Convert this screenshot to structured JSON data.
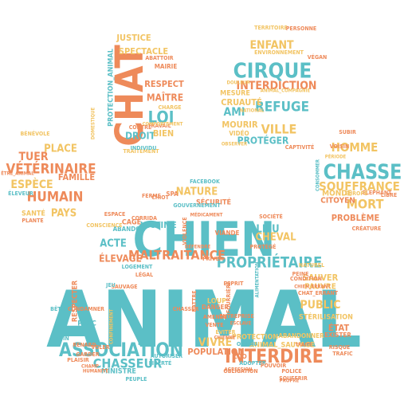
{
  "palette": {
    "teal": "#5bbfc6",
    "orange": "#ee8a5a",
    "yellow": "#f2c463"
  },
  "words": [
    {
      "text": "ANIMAL",
      "color": "teal"
    },
    {
      "text": "CHIEN",
      "color": "teal"
    },
    {
      "text": "CHAT",
      "color": "orange"
    },
    {
      "text": "CIRQUE",
      "color": "teal"
    },
    {
      "text": "CHASSE",
      "color": "teal"
    },
    {
      "text": "ASSOCIATION",
      "color": "teal"
    },
    {
      "text": "INTERDIRE",
      "color": "orange"
    },
    {
      "text": "PROPRIÉTAIRE",
      "color": "teal"
    },
    {
      "text": "VÉTÉRINAIRE",
      "color": "orange"
    },
    {
      "text": "SOUFFRANCE",
      "color": "yellow"
    },
    {
      "text": "MALTRAITANCE",
      "color": "orange"
    },
    {
      "text": "CHASSEUR",
      "color": "teal"
    },
    {
      "text": "REFUGE",
      "color": "teal"
    },
    {
      "text": "VILLE",
      "color": "yellow"
    },
    {
      "text": "LOI",
      "color": "teal"
    },
    {
      "text": "HUMAIN",
      "color": "orange"
    },
    {
      "text": "ESPÈCE",
      "color": "yellow"
    },
    {
      "text": "TUER",
      "color": "orange"
    },
    {
      "text": "MORT",
      "color": "yellow"
    },
    {
      "text": "HOMME",
      "color": "yellow"
    },
    {
      "text": "INTERDICTION",
      "color": "orange"
    },
    {
      "text": "ENFANT",
      "color": "yellow"
    },
    {
      "text": "NATURE",
      "color": "yellow"
    },
    {
      "text": "ÉLEVAGE",
      "color": "orange"
    },
    {
      "text": "VIVRE",
      "color": "yellow"
    },
    {
      "text": "PUBLIC",
      "color": "yellow"
    },
    {
      "text": "LIEU",
      "color": "teal"
    },
    {
      "text": "CHEVAL",
      "color": "yellow"
    },
    {
      "text": "VICTIME",
      "color": "teal"
    },
    {
      "text": "POPULATION",
      "color": "orange"
    },
    {
      "text": "ÉTAT",
      "color": "orange"
    },
    {
      "text": "PROBLÈME",
      "color": "orange"
    },
    {
      "text": "PAYS",
      "color": "yellow"
    },
    {
      "text": "PLACE",
      "color": "yellow"
    },
    {
      "text": "FAMILLE",
      "color": "orange"
    },
    {
      "text": "ACTE",
      "color": "teal"
    },
    {
      "text": "SAUVER",
      "color": "yellow"
    },
    {
      "text": "PROTÉGER",
      "color": "teal"
    },
    {
      "text": "MAÎTRE",
      "color": "orange"
    },
    {
      "text": "RESPECT",
      "color": "orange"
    },
    {
      "text": "SPECTACLE",
      "color": "yellow"
    },
    {
      "text": "JUSTICE",
      "color": "yellow"
    },
    {
      "text": "AMI",
      "color": "teal"
    },
    {
      "text": "CRUAUTÉ",
      "color": "yellow"
    },
    {
      "text": "MOURIR",
      "color": "yellow"
    },
    {
      "text": "DROIT",
      "color": "teal"
    },
    {
      "text": "BIEN",
      "color": "yellow"
    },
    {
      "text": "CITOYEN",
      "color": "orange"
    },
    {
      "text": "MONDE",
      "color": "yellow"
    },
    {
      "text": "SANTÉ",
      "color": "yellow"
    },
    {
      "text": "CAGE",
      "color": "orange"
    },
    {
      "text": "PARC",
      "color": "teal"
    },
    {
      "text": "LOUP",
      "color": "yellow"
    },
    {
      "text": "PAUVRE",
      "color": "yellow"
    },
    {
      "text": "STÉRILISATION",
      "color": "yellow"
    },
    {
      "text": "ABANDONNER",
      "color": "yellow"
    },
    {
      "text": "PROTECTION",
      "color": "yellow"
    },
    {
      "text": "ANIMAL_SAUVAGE",
      "color": "yellow"
    },
    {
      "text": "RESPECTER",
      "color": "orange"
    },
    {
      "text": "SÉCURITÉ",
      "color": "orange"
    },
    {
      "text": "MINISTRE",
      "color": "teal"
    },
    {
      "text": "PROTECTION_ANIMAL",
      "color": "teal"
    },
    {
      "text": "MAIRIE",
      "color": "orange"
    },
    {
      "text": "TERRITOIRE",
      "color": "yellow"
    },
    {
      "text": "ENVIRONNEMENT",
      "color": "yellow"
    },
    {
      "text": "ABATTOIR",
      "color": "orange"
    },
    {
      "text": "MESURE",
      "color": "yellow"
    },
    {
      "text": "VIDÉO",
      "color": "yellow"
    },
    {
      "text": "TRAVAIL",
      "color": "orange"
    },
    {
      "text": "SUBIR",
      "color": "orange"
    },
    {
      "text": "ÉLÉPHANT",
      "color": "orange"
    },
    {
      "text": "FACEBOOK",
      "color": "teal"
    },
    {
      "text": "SOCIÉTÉ",
      "color": "orange"
    },
    {
      "text": "DANGER",
      "color": "orange"
    },
    {
      "text": "EXISTER",
      "color": "orange"
    },
    {
      "text": "NATUREL",
      "color": "yellow"
    },
    {
      "text": "VIANDE",
      "color": "orange"
    },
    {
      "text": "RISQUE",
      "color": "orange"
    },
    {
      "text": "CHAT_ERRANT",
      "color": "orange"
    },
    {
      "text": "POLICE",
      "color": "orange"
    },
    {
      "text": "ZOO",
      "color": "orange"
    },
    {
      "text": "ABANDON",
      "color": "teal"
    },
    {
      "text": "PLANTE",
      "color": "orange"
    },
    {
      "text": "ÉLEVEUR",
      "color": "teal"
    },
    {
      "text": "ADOPTER",
      "color": "teal"
    },
    {
      "text": "LIBERTÉ",
      "color": "teal"
    },
    {
      "text": "NATIONAL",
      "color": "yellow"
    },
    {
      "text": "PEINE",
      "color": "orange"
    },
    {
      "text": "ÉVITER",
      "color": "yellow"
    },
    {
      "text": "SAUVAGE",
      "color": "orange"
    },
    {
      "text": "ESPACE",
      "color": "orange"
    },
    {
      "text": "VOISIN",
      "color": "orange"
    },
    {
      "text": "VIOLENCE",
      "color": "orange"
    },
    {
      "text": "CHIOT",
      "color": "orange"
    },
    {
      "text": "SPA",
      "color": "orange"
    },
    {
      "text": "BÊTE",
      "color": "teal"
    },
    {
      "text": "SOIN",
      "color": "teal"
    },
    {
      "text": "FERME",
      "color": "orange"
    },
    {
      "text": "GOUVERNEMENT",
      "color": "teal"
    },
    {
      "text": "CONDITION",
      "color": "orange"
    },
    {
      "text": "OISEAU",
      "color": "teal"
    },
    {
      "text": "AUTORISER",
      "color": "teal"
    },
    {
      "text": "CONSCIENCE",
      "color": "yellow"
    },
    {
      "text": "ENTREPRISE",
      "color": "orange"
    },
    {
      "text": "ÊTRE_ANIMAL",
      "color": "orange"
    },
    {
      "text": "CONDAMNER",
      "color": "orange"
    },
    {
      "text": "BÉNÉVOLE",
      "color": "yellow"
    },
    {
      "text": "LIBRE",
      "color": "orange"
    },
    {
      "text": "EUROPE",
      "color": "yellow"
    },
    {
      "text": "CORRIDA",
      "color": "orange"
    },
    {
      "text": "COMPORTEMENT",
      "color": "yellow"
    },
    {
      "text": "CHARGE",
      "color": "yellow"
    },
    {
      "text": "CONTRE",
      "color": "orange"
    },
    {
      "text": "TRAITEMENT",
      "color": "yellow"
    },
    {
      "text": "PERSONNE",
      "color": "orange"
    },
    {
      "text": "VÉGAN",
      "color": "orange"
    },
    {
      "text": "ANIMAL_COMPAGNIE",
      "color": "yellow"
    },
    {
      "text": "CRÉATURE",
      "color": "orange"
    },
    {
      "text": "CAPTIVITÉ",
      "color": "orange"
    },
    {
      "text": "INDIVIDU",
      "color": "teal"
    },
    {
      "text": "LOGEMENT",
      "color": "teal"
    },
    {
      "text": "PRIVER",
      "color": "orange"
    },
    {
      "text": "RENARD",
      "color": "orange"
    },
    {
      "text": "PLAISIR",
      "color": "orange"
    },
    {
      "text": "GARDER",
      "color": "orange"
    },
    {
      "text": "TRAFIC",
      "color": "orange"
    },
    {
      "text": "VENTE",
      "color": "orange"
    },
    {
      "text": "FOURRIÈRE",
      "color": "orange"
    },
    {
      "text": "AMENDE",
      "color": "orange"
    },
    {
      "text": "CONSOMMER",
      "color": "teal"
    },
    {
      "text": "DÉFENDRE",
      "color": "orange"
    },
    {
      "text": "MÉDICAMENT",
      "color": "orange"
    },
    {
      "text": "POUVOIR",
      "color": "orange"
    },
    {
      "text": "OBLIGATION",
      "color": "orange"
    },
    {
      "text": "PEUPLE",
      "color": "teal"
    },
    {
      "text": "PROTÉGÉ",
      "color": "orange"
    },
    {
      "text": "LÉGAL",
      "color": "orange"
    },
    {
      "text": "PÉRIODE",
      "color": "yellow"
    },
    {
      "text": "CHIEN_ERRANT",
      "color": "orange"
    },
    {
      "text": "AGRESSION",
      "color": "orange"
    },
    {
      "text": "SOUFFRIR",
      "color": "orange"
    },
    {
      "text": "BATTRE",
      "color": "orange"
    },
    {
      "text": "CHASSER",
      "color": "orange"
    },
    {
      "text": "ESPRIT",
      "color": "orange"
    },
    {
      "text": "ALIMENTATION",
      "color": "teal"
    },
    {
      "text": "CONFINEMENT",
      "color": "yellow"
    },
    {
      "text": "PROPRE",
      "color": "orange"
    },
    {
      "text": "VOLER",
      "color": "orange"
    },
    {
      "text": "JEU",
      "color": "teal"
    },
    {
      "text": "CHIENNE",
      "color": "orange"
    },
    {
      "text": "ESCLAVE",
      "color": "orange"
    },
    {
      "text": "TRAITÉ",
      "color": "orange"
    },
    {
      "text": "HUMANITÉ",
      "color": "orange"
    },
    {
      "text": "CHAMP",
      "color": "orange"
    },
    {
      "text": "DOMESTIQUE",
      "color": "yellow"
    },
    {
      "text": "DOULEUR",
      "color": "yellow"
    },
    {
      "text": "OBSERVER",
      "color": "yellow"
    }
  ]
}
